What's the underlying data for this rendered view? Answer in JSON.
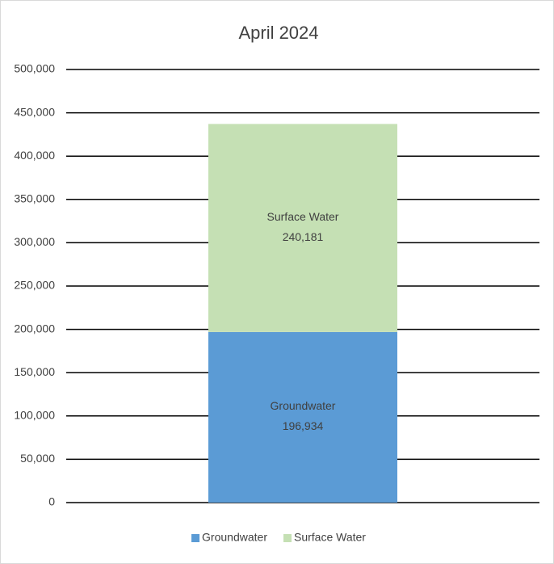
{
  "chart_data": {
    "type": "stacked-bar",
    "title": "April 2024",
    "categories": [
      null
    ],
    "series": [
      {
        "name": "Groundwater",
        "color": "#5b9bd5",
        "values": [
          196934
        ],
        "value_labels": [
          "196,934"
        ]
      },
      {
        "name": "Surface Water",
        "color": "#c5e0b4",
        "values": [
          240181
        ],
        "value_labels": [
          "240,181"
        ]
      }
    ],
    "ylim": [
      0,
      500000
    ],
    "yticks": [
      0,
      {
        "value": 50000,
        "label": "50,000"
      },
      {
        "value": 100000,
        "label": "100,000"
      },
      {
        "value": 150000,
        "label": "150,000"
      },
      {
        "value": 200000,
        "label": "200,000"
      },
      {
        "value": 250000,
        "label": "250,000"
      },
      {
        "value": 300000,
        "label": "300,000"
      },
      {
        "value": 350000,
        "label": "350,000"
      },
      {
        "value": 400000,
        "label": "400,000"
      },
      {
        "value": 450000,
        "label": "450,000"
      },
      {
        "value": 500000,
        "label": "500,000"
      }
    ],
    "grid": true,
    "legend": "bottom"
  }
}
